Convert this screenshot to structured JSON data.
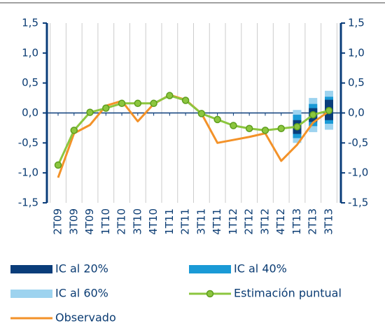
{
  "chart_data": {
    "type": "line",
    "categories": [
      "2T09",
      "3T09",
      "4T09",
      "1T10",
      "2T10",
      "3T10",
      "4T10",
      "1T11",
      "2T11",
      "3T11",
      "4T11",
      "1T12",
      "2T12",
      "3T12",
      "4T12",
      "1T13",
      "2T13",
      "3T13"
    ],
    "series": [
      {
        "name": "IC al 60%",
        "type": "range",
        "color": "#9dd3ef",
        "values": [
          null,
          null,
          null,
          null,
          null,
          null,
          null,
          null,
          null,
          null,
          null,
          null,
          null,
          null,
          null,
          [
            -0.5,
            0.05
          ],
          [
            -0.32,
            0.25
          ],
          [
            -0.28,
            0.37
          ]
        ]
      },
      {
        "name": "IC al 40%",
        "type": "range",
        "color": "#1a9ad6",
        "values": [
          null,
          null,
          null,
          null,
          null,
          null,
          null,
          null,
          null,
          null,
          null,
          null,
          null,
          null,
          null,
          [
            -0.42,
            -0.03
          ],
          [
            -0.22,
            0.15
          ],
          [
            -0.18,
            0.27
          ]
        ]
      },
      {
        "name": "IC al 20%",
        "type": "range",
        "color": "#0a3d7a",
        "values": [
          null,
          null,
          null,
          null,
          null,
          null,
          null,
          null,
          null,
          null,
          null,
          null,
          null,
          null,
          null,
          [
            -0.35,
            -0.12
          ],
          [
            -0.15,
            0.08
          ],
          [
            -0.12,
            0.22
          ]
        ]
      },
      {
        "name": "Observado",
        "type": "line",
        "color": "#f39229",
        "values": [
          -1.08,
          -0.34,
          -0.2,
          0.12,
          0.2,
          -0.14,
          0.15,
          0.3,
          0.22,
          -0.01,
          -0.5,
          -0.45,
          -0.4,
          -0.34,
          -0.8,
          -0.53,
          -0.16,
          0.03
        ]
      },
      {
        "name": "Estimación puntual",
        "type": "line-marker",
        "color": "#8cc63f",
        "values": [
          -0.87,
          -0.29,
          0.01,
          0.08,
          0.16,
          0.16,
          0.16,
          0.29,
          0.21,
          -0.01,
          -0.11,
          -0.21,
          -0.26,
          -0.29,
          -0.26,
          -0.23,
          -0.03,
          0.04
        ]
      }
    ],
    "ylim": [
      -1.5,
      1.5
    ],
    "yticks": [
      {
        "value": -1.5,
        "label": "-1,5"
      },
      {
        "value": -1.0,
        "label": "-1,0"
      },
      {
        "value": -0.5,
        "label": "-0,5"
      },
      {
        "value": 0.0,
        "label": "0,0"
      },
      {
        "value": 0.5,
        "label": "0,5"
      },
      {
        "value": 1.0,
        "label": "1,0"
      },
      {
        "value": 1.5,
        "label": "1,5"
      }
    ],
    "legend_order": [
      "IC al 20%",
      "IC al 40%",
      "IC al 60%",
      "Estimación puntual",
      "Observado"
    ],
    "grid": true,
    "axis_color": "#0a3d7a"
  }
}
